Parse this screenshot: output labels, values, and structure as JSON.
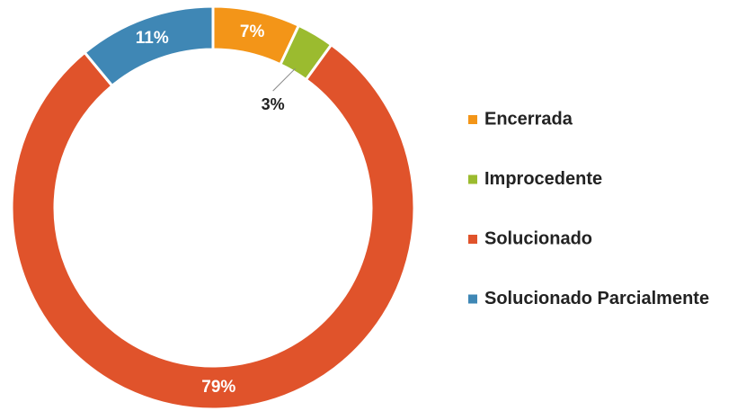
{
  "chart_data": {
    "type": "donut",
    "categories": [
      "Encerrada",
      "Improcedente",
      "Solucionado",
      "Solucionado Parcialmente"
    ],
    "values": [
      7,
      3,
      79,
      11
    ],
    "value_labels": [
      "7%",
      "3%",
      "79%",
      "11%"
    ],
    "colors": [
      "#f39518",
      "#9bbb2f",
      "#e0532b",
      "#3f87b5"
    ],
    "legend": "right"
  }
}
